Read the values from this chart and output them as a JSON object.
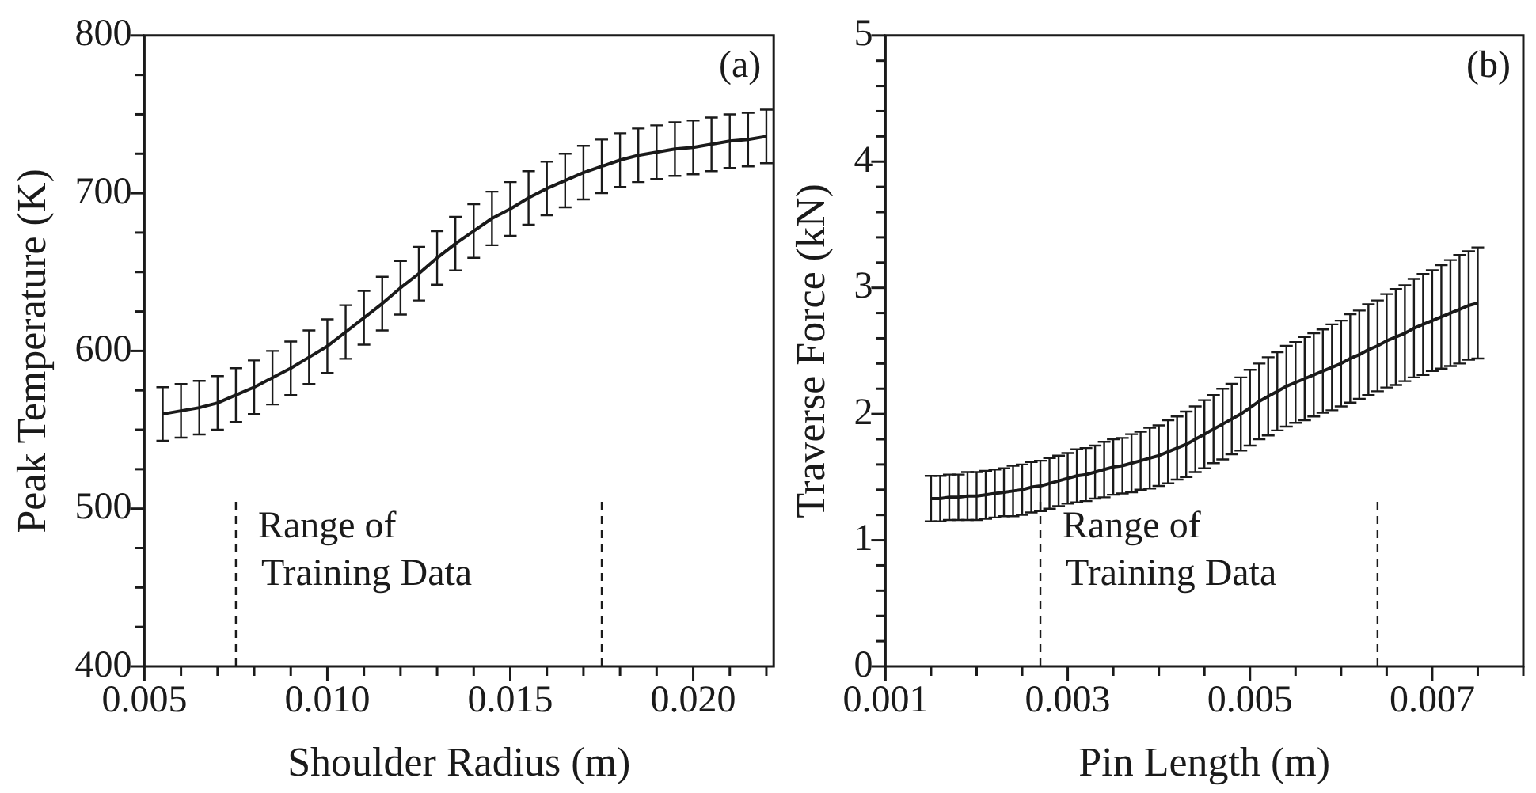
{
  "chart_data": [
    {
      "type": "line",
      "xlabel": "Shoulder Radius (m)",
      "ylabel": "Peak Temperature (K)",
      "annotations": [
        "(a)"
      ],
      "marker": "none",
      "x": [
        0.0055,
        0.006,
        0.0065,
        0.007,
        0.0075,
        0.008,
        0.0085,
        0.009,
        0.0095,
        0.01,
        0.0105,
        0.011,
        0.0115,
        0.012,
        0.0125,
        0.013,
        0.0135,
        0.014,
        0.0145,
        0.015,
        0.0155,
        0.016,
        0.0165,
        0.017,
        0.0175,
        0.018,
        0.0185,
        0.019,
        0.0195,
        0.02,
        0.0205,
        0.021,
        0.0215,
        0.022
      ],
      "series": [
        {
          "color": "#1a1a1a",
          "values": [
            560,
            562,
            564,
            567,
            572,
            577,
            583,
            589,
            596,
            603,
            612,
            621,
            630,
            640,
            649,
            659,
            668,
            676,
            684,
            690,
            697,
            703,
            708,
            713,
            717,
            721,
            724,
            726,
            728,
            729,
            731,
            733,
            734,
            736
          ],
          "errors": [
            17,
            17,
            17,
            17,
            17,
            17,
            17,
            17,
            17,
            17,
            17,
            17,
            17,
            17,
            17,
            17,
            17,
            17,
            17,
            17,
            17,
            17,
            17,
            17,
            17,
            17,
            17,
            17,
            17,
            17,
            17,
            17,
            17,
            17
          ]
        }
      ],
      "xlim": [
        0.005,
        0.0222
      ],
      "xticks": [
        0.005,
        {
          "value": 0.006,
          "label": null
        },
        {
          "value": 0.007,
          "label": null
        },
        {
          "value": 0.008,
          "label": null
        },
        {
          "value": 0.009,
          "label": null
        },
        {
          "value": 0.01,
          "label": "0.010"
        },
        {
          "value": 0.011,
          "label": null
        },
        {
          "value": 0.012,
          "label": null
        },
        {
          "value": 0.013,
          "label": null
        },
        {
          "value": 0.014,
          "label": null
        },
        0.015,
        {
          "value": 0.016,
          "label": null
        },
        {
          "value": 0.017,
          "label": null
        },
        {
          "value": 0.018,
          "label": null
        },
        {
          "value": 0.019,
          "label": null
        },
        {
          "value": 0.02,
          "label": "0.020"
        },
        {
          "value": 0.021,
          "label": null
        },
        {
          "value": 0.022,
          "label": null
        }
      ],
      "ylim": [
        400,
        800
      ],
      "yticks": [
        400,
        {
          "value": 425,
          "label": null
        },
        {
          "value": 450,
          "label": null
        },
        {
          "value": 475,
          "label": null
        },
        500,
        {
          "value": 525,
          "label": null
        },
        {
          "value": 550,
          "label": null
        },
        {
          "value": 575,
          "label": null
        },
        600,
        {
          "value": 625,
          "label": null
        },
        {
          "value": 650,
          "label": null
        },
        {
          "value": 675,
          "label": null
        },
        700,
        {
          "value": 725,
          "label": null
        },
        {
          "value": 750,
          "label": null
        },
        {
          "value": 775,
          "label": null
        },
        800
      ],
      "ref_lines": [
        {
          "axis": "x",
          "value": 0.0075,
          "label": "Range of Training Data",
          "line_style": "dashed",
          "color": "#1a1a1a"
        },
        {
          "axis": "x",
          "value": 0.0175,
          "line_style": "dashed",
          "color": "#1a1a1a"
        }
      ]
    },
    {
      "type": "line",
      "xlabel": "Pin Length (m)",
      "ylabel": "Traverse Force (kN)",
      "annotations": [
        "(b)"
      ],
      "marker": "none",
      "x": [
        0.0015,
        0.0016,
        0.0017,
        0.0018,
        0.0019,
        0.002,
        0.0021,
        0.0022,
        0.0023,
        0.0024,
        0.0025,
        0.0026,
        0.0027,
        0.0028,
        0.0029,
        0.003,
        0.0031,
        0.0032,
        0.0033,
        0.0034,
        0.0035,
        0.0036,
        0.0037,
        0.0038,
        0.0039,
        0.004,
        0.0041,
        0.0042,
        0.0043,
        0.0044,
        0.0045,
        0.0046,
        0.0047,
        0.0048,
        0.0049,
        0.005,
        0.0051,
        0.0052,
        0.0053,
        0.0054,
        0.0055,
        0.0056,
        0.0057,
        0.0058,
        0.0059,
        0.006,
        0.0061,
        0.0062,
        0.0063,
        0.0064,
        0.0065,
        0.0066,
        0.0067,
        0.0068,
        0.0069,
        0.007,
        0.0071,
        0.0072,
        0.0073,
        0.0074,
        0.0075
      ],
      "series": [
        {
          "color": "#1a1a1a",
          "values": [
            1.33,
            1.33,
            1.34,
            1.34,
            1.35,
            1.35,
            1.36,
            1.37,
            1.38,
            1.39,
            1.4,
            1.42,
            1.43,
            1.45,
            1.47,
            1.49,
            1.51,
            1.52,
            1.54,
            1.56,
            1.58,
            1.59,
            1.61,
            1.63,
            1.65,
            1.67,
            1.7,
            1.73,
            1.76,
            1.8,
            1.84,
            1.88,
            1.92,
            1.96,
            2.0,
            2.05,
            2.1,
            2.14,
            2.18,
            2.22,
            2.25,
            2.28,
            2.31,
            2.34,
            2.37,
            2.4,
            2.44,
            2.47,
            2.51,
            2.54,
            2.58,
            2.61,
            2.64,
            2.68,
            2.71,
            2.74,
            2.77,
            2.8,
            2.83,
            2.86,
            2.88
          ],
          "errors": [
            0.18,
            0.18,
            0.18,
            0.18,
            0.19,
            0.19,
            0.19,
            0.19,
            0.19,
            0.2,
            0.2,
            0.2,
            0.2,
            0.2,
            0.2,
            0.2,
            0.21,
            0.21,
            0.21,
            0.22,
            0.22,
            0.22,
            0.23,
            0.23,
            0.24,
            0.24,
            0.25,
            0.25,
            0.26,
            0.26,
            0.27,
            0.27,
            0.28,
            0.28,
            0.29,
            0.3,
            0.3,
            0.31,
            0.31,
            0.32,
            0.32,
            0.33,
            0.33,
            0.33,
            0.34,
            0.34,
            0.35,
            0.35,
            0.36,
            0.36,
            0.37,
            0.38,
            0.38,
            0.39,
            0.4,
            0.4,
            0.41,
            0.42,
            0.43,
            0.43,
            0.44
          ]
        }
      ],
      "xlim": [
        0.001,
        0.008
      ],
      "xticks": [
        0.001,
        {
          "value": 0.0015,
          "label": null
        },
        {
          "value": 0.002,
          "label": null
        },
        {
          "value": 0.0025,
          "label": null
        },
        0.003,
        {
          "value": 0.0035,
          "label": null
        },
        {
          "value": 0.004,
          "label": null
        },
        {
          "value": 0.0045,
          "label": null
        },
        0.005,
        {
          "value": 0.0055,
          "label": null
        },
        {
          "value": 0.006,
          "label": null
        },
        {
          "value": 0.0065,
          "label": null
        },
        0.007,
        {
          "value": 0.0075,
          "label": null
        },
        {
          "value": 0.008,
          "label": null
        }
      ],
      "ylim": [
        0,
        5
      ],
      "yticks": [
        0,
        {
          "value": 0.2,
          "label": null
        },
        {
          "value": 0.4,
          "label": null
        },
        {
          "value": 0.6,
          "label": null
        },
        {
          "value": 0.8,
          "label": null
        },
        1,
        {
          "value": 1.2,
          "label": null
        },
        {
          "value": 1.4,
          "label": null
        },
        {
          "value": 1.6,
          "label": null
        },
        {
          "value": 1.8,
          "label": null
        },
        2,
        {
          "value": 2.2,
          "label": null
        },
        {
          "value": 2.4,
          "label": null
        },
        {
          "value": 2.6,
          "label": null
        },
        {
          "value": 2.8,
          "label": null
        },
        3,
        {
          "value": 3.2,
          "label": null
        },
        {
          "value": 3.4,
          "label": null
        },
        {
          "value": 3.6,
          "label": null
        },
        {
          "value": 3.8,
          "label": null
        },
        4,
        {
          "value": 4.2,
          "label": null
        },
        {
          "value": 4.4,
          "label": null
        },
        {
          "value": 4.6,
          "label": null
        },
        {
          "value": 4.8,
          "label": null
        },
        5
      ],
      "ref_lines": [
        {
          "axis": "x",
          "value": 0.0027,
          "label": "Range of Training Data",
          "line_style": "dashed",
          "color": "#1a1a1a"
        },
        {
          "axis": "x",
          "value": 0.0064,
          "line_style": "dashed",
          "color": "#1a1a1a"
        }
      ]
    }
  ]
}
